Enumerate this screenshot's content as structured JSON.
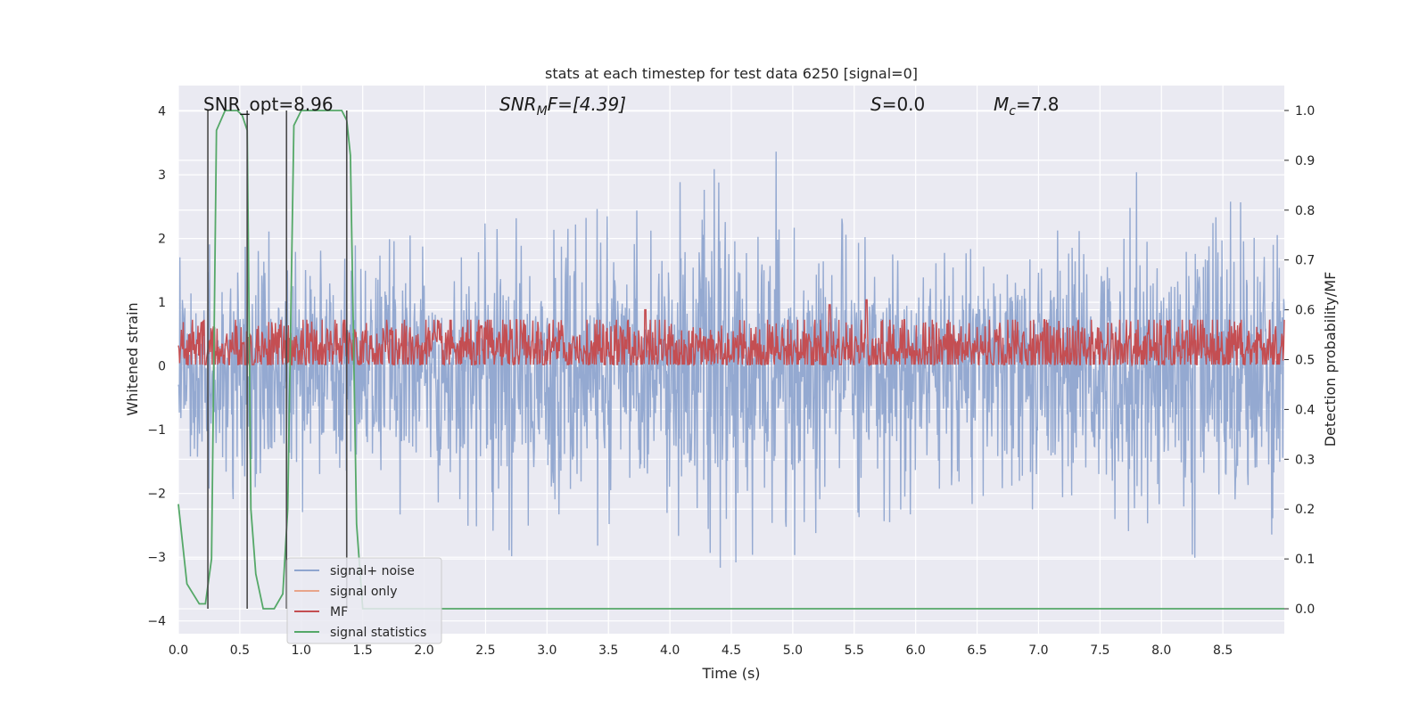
{
  "chart_data": {
    "type": "line",
    "title": "stats at each timestep for test data 6250 [signal=0]",
    "xlabel": "Time (s)",
    "ylabel": "Whitened strain",
    "ylabel_right": "Detection probability/MF",
    "xlim": [
      0.0,
      9.0
    ],
    "ylim": [
      -4.2,
      4.4
    ],
    "ylim_right": [
      -0.05,
      1.05
    ],
    "x_ticks": [
      "0.0",
      "0.5",
      "1.0",
      "1.5",
      "2.0",
      "2.5",
      "3.0",
      "3.5",
      "4.0",
      "4.5",
      "5.0",
      "5.5",
      "6.0",
      "6.5",
      "7.0",
      "7.5",
      "8.0",
      "8.5"
    ],
    "y_ticks": [
      "4",
      "3",
      "2",
      "1",
      "0",
      "−1",
      "−2",
      "−3",
      "−4"
    ],
    "y_right_ticks": [
      "1.0",
      "0.9",
      "0.8",
      "0.7",
      "0.6",
      "0.5",
      "0.4",
      "0.3",
      "0.2",
      "0.1",
      "0.0"
    ],
    "grid": true,
    "legend_position": "lower-left",
    "annotations": {
      "snr_opt": "SNR_opt=8.96",
      "snr_mf_main": "SNR",
      "snr_mf_sub": "M",
      "snr_mf_rest": "F=[4.39]",
      "s_main": "S",
      "s_rest": "=0.0",
      "mc_main": "M",
      "mc_sub": "c",
      "mc_rest": "=7.8"
    },
    "series": [
      {
        "name": "signal+ noise",
        "axis": "left",
        "color": "#8fa5cf",
        "envelope_upper": [
          [
            0.0,
            1.7
          ],
          [
            0.5,
            2.3
          ],
          [
            1.0,
            1.9
          ],
          [
            1.5,
            2.4
          ],
          [
            2.0,
            2.2
          ],
          [
            2.5,
            2.5
          ],
          [
            3.0,
            2.3
          ],
          [
            3.5,
            2.5
          ],
          [
            4.0,
            2.4
          ],
          [
            4.2,
            4.0
          ],
          [
            4.5,
            2.3
          ],
          [
            4.9,
            3.6
          ],
          [
            5.0,
            2.3
          ],
          [
            5.5,
            2.4
          ],
          [
            5.8,
            2.1
          ],
          [
            6.0,
            2.3
          ],
          [
            6.5,
            2.3
          ],
          [
            7.0,
            2.6
          ],
          [
            7.5,
            2.4
          ],
          [
            7.8,
            3.3
          ],
          [
            8.0,
            2.4
          ],
          [
            8.5,
            3.7
          ],
          [
            9.0,
            2.3
          ]
        ],
        "envelope_lower": [
          [
            0.0,
            -2.0
          ],
          [
            0.5,
            -2.4
          ],
          [
            1.0,
            -2.6
          ],
          [
            1.5,
            -2.3
          ],
          [
            2.0,
            -2.6
          ],
          [
            2.5,
            -2.5
          ],
          [
            2.95,
            -3.6
          ],
          [
            3.5,
            -2.8
          ],
          [
            4.0,
            -2.6
          ],
          [
            4.2,
            -3.2
          ],
          [
            4.5,
            -3.2
          ],
          [
            5.0,
            -3.0
          ],
          [
            5.5,
            -2.7
          ],
          [
            6.0,
            -2.6
          ],
          [
            6.5,
            -2.6
          ],
          [
            7.0,
            -2.7
          ],
          [
            7.5,
            -2.8
          ],
          [
            7.85,
            -3.4
          ],
          [
            8.0,
            -2.9
          ],
          [
            8.5,
            -3.2
          ],
          [
            9.0,
            -2.5
          ]
        ]
      },
      {
        "name": "signal only",
        "axis": "left",
        "color": "#e8a58b",
        "values": []
      },
      {
        "name": "MF",
        "axis": "right",
        "color": "#c44e52",
        "baseline": 0.52,
        "amplitude": 0.035,
        "peaks": [
          [
            3.8,
            0.6
          ],
          [
            5.3,
            0.61
          ],
          [
            5.6,
            0.62
          ]
        ]
      },
      {
        "name": "signal statistics",
        "axis": "right",
        "color": "#55a868",
        "points": [
          [
            0.0,
            0.21
          ],
          [
            0.07,
            0.05
          ],
          [
            0.12,
            0.03
          ],
          [
            0.17,
            0.01
          ],
          [
            0.22,
            0.01
          ],
          [
            0.27,
            0.1
          ],
          [
            0.31,
            0.96
          ],
          [
            0.38,
            1.0
          ],
          [
            0.48,
            1.0
          ],
          [
            0.52,
            0.99
          ],
          [
            0.56,
            0.96
          ],
          [
            0.59,
            0.2
          ],
          [
            0.63,
            0.07
          ],
          [
            0.69,
            0.0
          ],
          [
            0.78,
            0.0
          ],
          [
            0.85,
            0.03
          ],
          [
            0.89,
            0.2
          ],
          [
            0.94,
            0.97
          ],
          [
            1.0,
            1.0
          ],
          [
            1.33,
            1.0
          ],
          [
            1.37,
            0.98
          ],
          [
            1.4,
            0.91
          ],
          [
            1.45,
            0.17
          ],
          [
            1.5,
            0.0
          ],
          [
            9.0,
            0.0
          ]
        ]
      }
    ],
    "markers_x": [
      0.24,
      0.56,
      0.88,
      1.37
    ]
  }
}
